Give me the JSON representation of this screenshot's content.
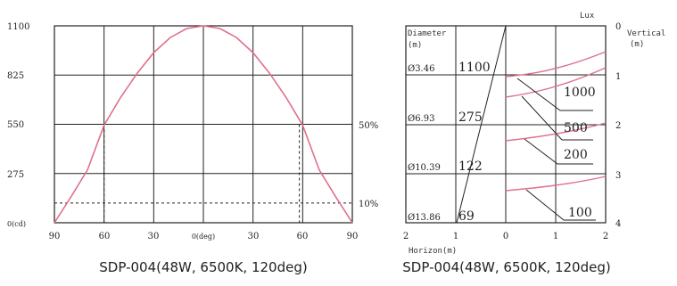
{
  "chart_data": [
    {
      "type": "line",
      "caption": "SDP-004(48W, 6500K, 120deg)",
      "x_ticks": [
        "90",
        "60",
        "30",
        "0(deg)",
        "30",
        "60",
        "90"
      ],
      "y_ticks": [
        "1100",
        "825",
        "550",
        "275",
        "0(cd)"
      ],
      "ylim": [
        0,
        1100
      ],
      "xlim": [
        -90,
        90
      ],
      "grid": true,
      "right_labels": [
        "50%",
        "10%"
      ],
      "reference_levels": [
        550,
        110
      ],
      "series": [
        {
          "x": [
            -90,
            -80,
            -70,
            -60,
            -50,
            -40,
            -30,
            -20,
            -10,
            0,
            10,
            20,
            30,
            40,
            50,
            60,
            70,
            80,
            90
          ],
          "y": [
            0,
            145,
            295,
            545,
            700,
            835,
            950,
            1035,
            1085,
            1100,
            1085,
            1035,
            950,
            835,
            700,
            545,
            295,
            145,
            0
          ]
        }
      ],
      "beam_edges": [
        -60,
        58
      ]
    },
    {
      "type": "table",
      "caption": "SDP-004(48W, 6500K, 120deg)",
      "header_left": "Diameter",
      "header_left_unit": "(m)",
      "header_right_top": "Lux",
      "header_right": "Vertical",
      "header_right_unit": "(m)",
      "x_label": "Horizon(m)",
      "x_ticks": [
        "2",
        "1",
        "0",
        "1",
        "2"
      ],
      "y_ticks": [
        "0",
        "1",
        "2",
        "3",
        "4"
      ],
      "rows": [
        {
          "diameter": "Ø3.46",
          "lux": "1100"
        },
        {
          "diameter": "Ø6.93",
          "lux": "275"
        },
        {
          "diameter": "Ø10.39",
          "lux": "122"
        },
        {
          "diameter": "Ø13.86",
          "lux": "69"
        }
      ],
      "contour_labels": [
        "1000",
        "500",
        "200",
        "100"
      ]
    }
  ]
}
